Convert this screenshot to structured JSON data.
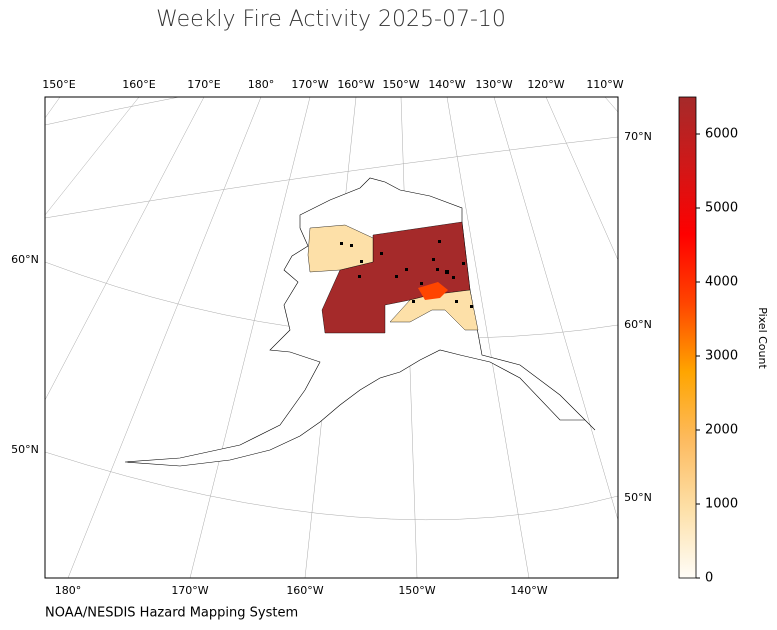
{
  "title": "Weekly Fire Activity 2025-07-10",
  "map": {
    "top_labels": [
      "150°E",
      "160°E",
      "170°E",
      "180°",
      "170°W",
      "160°W",
      "150°W",
      "140°W",
      "130°W",
      "120°W",
      "110°W"
    ],
    "bottom_labels": [
      "180°",
      "170°W",
      "160°W",
      "150°W",
      "140°W"
    ],
    "left_labels": [
      "60°N",
      "50°N"
    ],
    "right_labels": [
      "70°N",
      "60°N",
      "50°N"
    ]
  },
  "colorbar": {
    "label": "Pixel Count",
    "range": [
      0,
      6500
    ],
    "ticks": [
      0,
      1000,
      2000,
      3000,
      4000,
      5000,
      6000
    ],
    "colormap": [
      "#fffdf8",
      "#fde0a8",
      "#fdbb60",
      "#ffa500",
      "#ff4500",
      "#ff0000",
      "#d01818",
      "#a52a2a"
    ]
  },
  "credit": "NOAA/NESDIS Hazard Mapping System"
}
